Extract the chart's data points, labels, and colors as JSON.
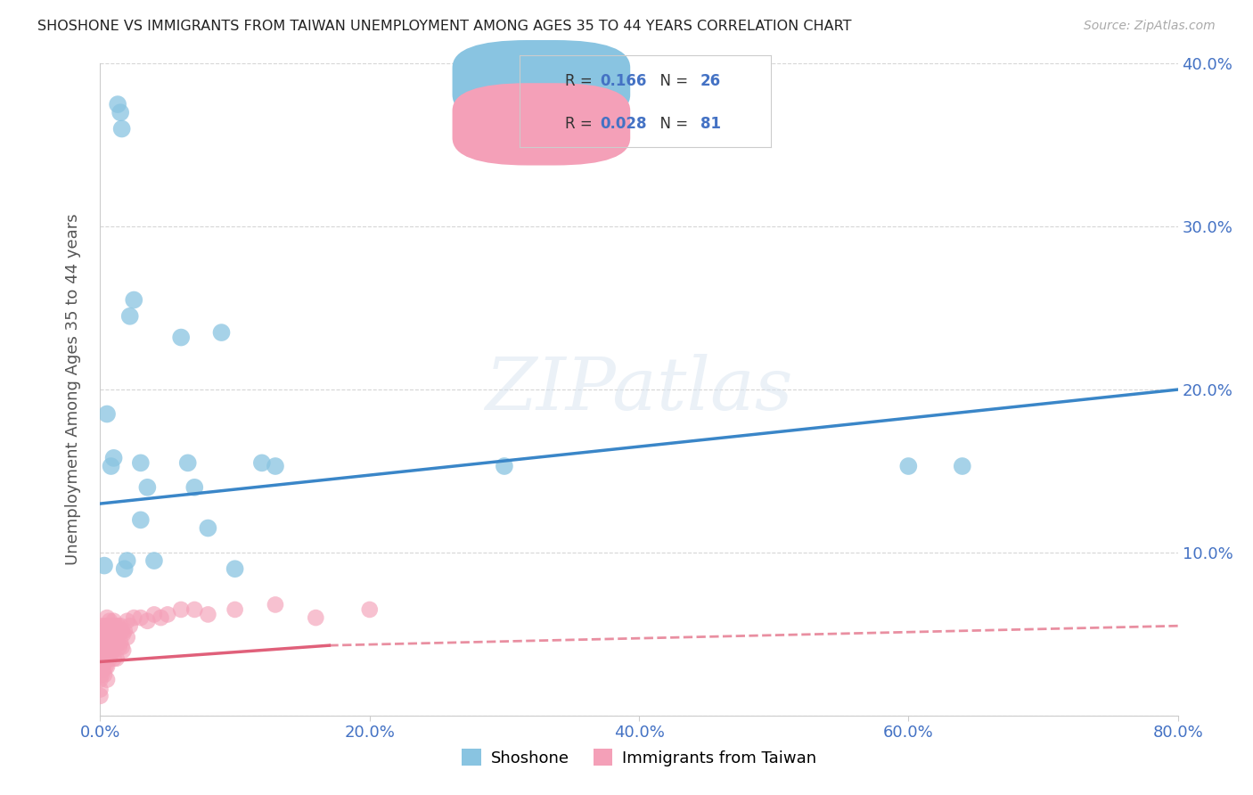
{
  "title": "SHOSHONE VS IMMIGRANTS FROM TAIWAN UNEMPLOYMENT AMONG AGES 35 TO 44 YEARS CORRELATION CHART",
  "source": "Source: ZipAtlas.com",
  "ylabel": "Unemployment Among Ages 35 to 44 years",
  "xlim": [
    0.0,
    0.8
  ],
  "ylim": [
    0.0,
    0.4
  ],
  "xticks": [
    0.0,
    0.2,
    0.4,
    0.6,
    0.8
  ],
  "yticks": [
    0.0,
    0.1,
    0.2,
    0.3,
    0.4
  ],
  "xtick_labels": [
    "0.0%",
    "20.0%",
    "40.0%",
    "60.0%",
    "80.0%"
  ],
  "right_ytick_labels": [
    "10.0%",
    "20.0%",
    "30.0%",
    "40.0%"
  ],
  "right_yticks": [
    0.1,
    0.2,
    0.3,
    0.4
  ],
  "shoshone_R": "0.166",
  "shoshone_N": "26",
  "taiwan_R": "0.028",
  "taiwan_N": "81",
  "shoshone_color": "#89c4e1",
  "taiwan_color": "#f4a0b8",
  "shoshone_line_color": "#3a86c8",
  "taiwan_line_color": "#e0607a",
  "background_color": "#ffffff",
  "grid_color": "#cccccc",
  "shoshone_x": [
    0.005,
    0.008,
    0.01,
    0.013,
    0.015,
    0.016,
    0.018,
    0.02,
    0.022,
    0.025,
    0.03,
    0.03,
    0.035,
    0.04,
    0.06,
    0.065,
    0.07,
    0.08,
    0.09,
    0.1,
    0.12,
    0.13,
    0.3,
    0.6,
    0.64,
    0.003
  ],
  "shoshone_y": [
    0.185,
    0.153,
    0.158,
    0.375,
    0.37,
    0.36,
    0.09,
    0.095,
    0.245,
    0.255,
    0.12,
    0.155,
    0.14,
    0.095,
    0.232,
    0.155,
    0.14,
    0.115,
    0.235,
    0.09,
    0.155,
    0.153,
    0.153,
    0.153,
    0.153,
    0.092
  ],
  "taiwan_x": [
    0.0,
    0.0,
    0.0,
    0.0,
    0.0,
    0.0,
    0.0,
    0.0,
    0.0,
    0.0,
    0.001,
    0.001,
    0.001,
    0.001,
    0.001,
    0.002,
    0.002,
    0.002,
    0.002,
    0.003,
    0.003,
    0.003,
    0.003,
    0.004,
    0.004,
    0.004,
    0.004,
    0.005,
    0.005,
    0.005,
    0.005,
    0.005,
    0.005,
    0.006,
    0.006,
    0.006,
    0.007,
    0.007,
    0.007,
    0.007,
    0.008,
    0.008,
    0.008,
    0.009,
    0.009,
    0.01,
    0.01,
    0.01,
    0.01,
    0.011,
    0.011,
    0.012,
    0.012,
    0.012,
    0.013,
    0.013,
    0.014,
    0.014,
    0.015,
    0.015,
    0.016,
    0.016,
    0.017,
    0.017,
    0.018,
    0.02,
    0.02,
    0.022,
    0.025,
    0.03,
    0.035,
    0.04,
    0.045,
    0.05,
    0.06,
    0.07,
    0.08,
    0.1,
    0.13,
    0.16,
    0.2
  ],
  "taiwan_y": [
    0.035,
    0.028,
    0.022,
    0.016,
    0.012,
    0.045,
    0.038,
    0.03,
    0.05,
    0.04,
    0.055,
    0.045,
    0.038,
    0.03,
    0.025,
    0.052,
    0.042,
    0.035,
    0.028,
    0.048,
    0.04,
    0.032,
    0.025,
    0.055,
    0.045,
    0.038,
    0.03,
    0.06,
    0.052,
    0.045,
    0.038,
    0.03,
    0.022,
    0.055,
    0.045,
    0.038,
    0.058,
    0.05,
    0.042,
    0.035,
    0.055,
    0.047,
    0.038,
    0.052,
    0.04,
    0.058,
    0.05,
    0.042,
    0.035,
    0.055,
    0.045,
    0.052,
    0.043,
    0.035,
    0.055,
    0.045,
    0.052,
    0.042,
    0.055,
    0.045,
    0.052,
    0.042,
    0.05,
    0.04,
    0.052,
    0.058,
    0.048,
    0.055,
    0.06,
    0.06,
    0.058,
    0.062,
    0.06,
    0.062,
    0.065,
    0.065,
    0.062,
    0.065,
    0.068,
    0.06,
    0.065
  ],
  "legend_shoshone": "Shoshone",
  "legend_taiwan": "Immigrants from Taiwan",
  "watermark": "ZIPatlas"
}
